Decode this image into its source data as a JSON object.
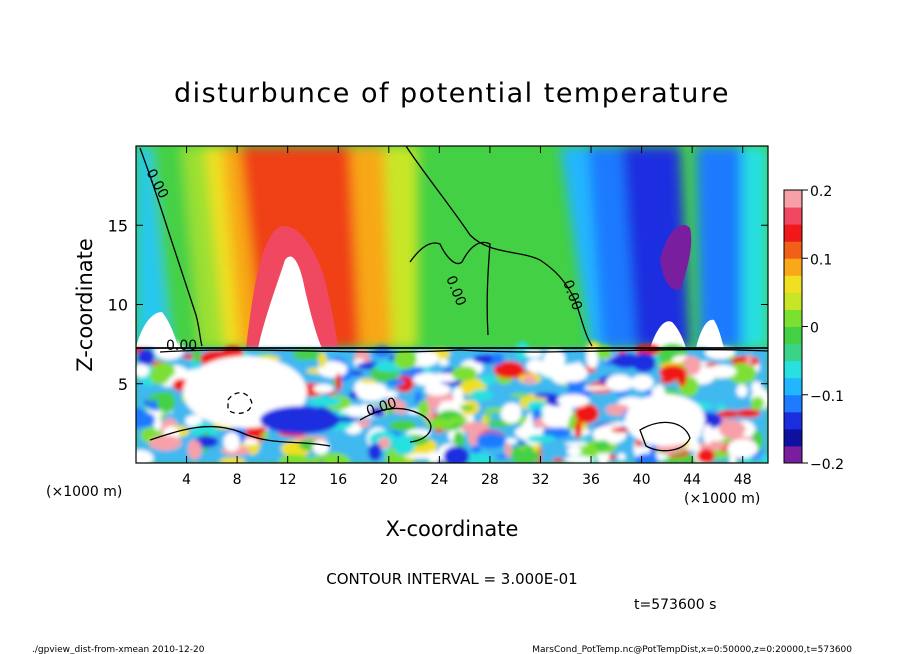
{
  "chart_data": {
    "type": "heatmap",
    "title": "disturbunce of potential temperature",
    "xlabel": "X-coordinate",
    "ylabel": "Z-coordinate",
    "x_unit_label": "(×1000 m)",
    "y_unit_label": "(×1000 m)",
    "x_ticks": [
      4,
      8,
      12,
      16,
      20,
      24,
      28,
      32,
      36,
      40,
      44,
      48
    ],
    "y_ticks": [
      5,
      10,
      15
    ],
    "xlim": [
      0,
      50
    ],
    "ylim": [
      0,
      20
    ],
    "colorbar": {
      "ticks": [
        "0.2",
        "0.1",
        "0",
        "−0.1",
        "−0.2"
      ],
      "values": [
        0.2,
        0.1,
        0,
        -0.1,
        -0.2
      ],
      "range": [
        -0.2,
        0.2
      ]
    },
    "contour_labels": [
      "0.00",
      "0.00",
      "0.00",
      "0.00",
      "0.00"
    ],
    "contour_interval_text": "CONTOUR INTERVAL = 3.000E-01",
    "time_text": "t=573600 s",
    "footer_left": "./gpview_dist-from-xmean   2010-12-20",
    "footer_right": "MarsCond_PotTemp.nc@PotTempDist,x=0:50000,z=0:20000,t=573600"
  }
}
